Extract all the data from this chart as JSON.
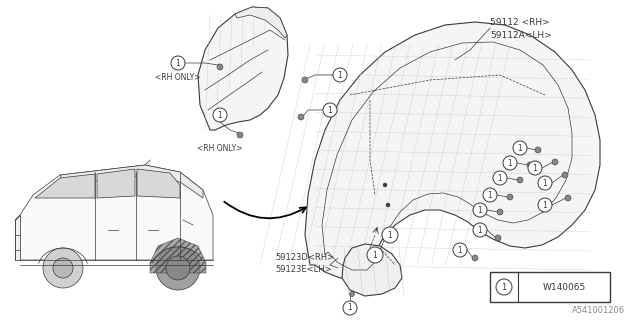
{
  "bg_color": "#ffffff",
  "line_color": "#3a3a3a",
  "label_59112_rh": "59112 <RH>",
  "label_59112a_lh": "59112A<LH>",
  "label_59123d_rh": "59123D<RH>",
  "label_59123e_lh": "59123E<LH>",
  "label_rh_only": "<RH ONLY>",
  "label_w140065": "W140065",
  "label_diagram_code": "A541001206",
  "fig_w": 6.4,
  "fig_h": 3.2,
  "dpi": 100
}
